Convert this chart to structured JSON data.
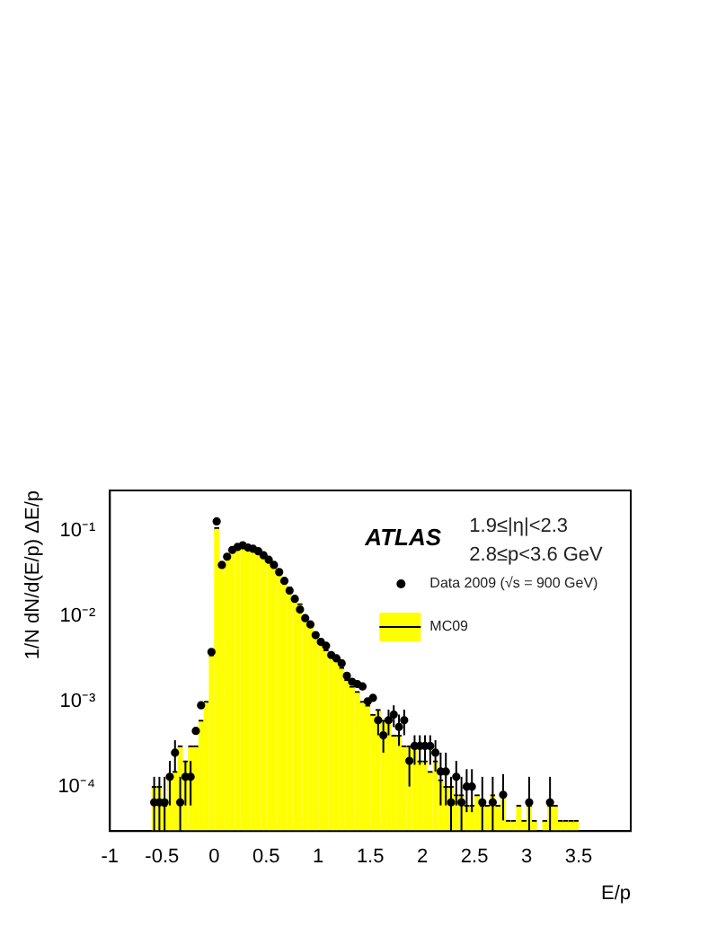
{
  "chart_data": {
    "type": "histogram",
    "xlabel": "E/p",
    "ylabel": "1/N dN/d(E/p) ΔE/p",
    "annotations": [
      "ATLAS",
      "1.9≤|η|<2.3",
      "2.8≤p<3.6 GeV"
    ],
    "bins": [
      -0.6,
      -0.55,
      -0.5,
      -0.45,
      -0.4,
      -0.35,
      -0.3,
      -0.25,
      -0.2,
      -0.15,
      -0.1,
      -0.05,
      0,
      0.05,
      0.1,
      0.15,
      0.2,
      0.25,
      0.3,
      0.35,
      0.4,
      0.45,
      0.5,
      0.55,
      0.6,
      0.65,
      0.7,
      0.75,
      0.8,
      0.85,
      0.9,
      0.95,
      1,
      1.05,
      1.1,
      1.15,
      1.2,
      1.25,
      1.3,
      1.35,
      1.4,
      1.45,
      1.5,
      1.55,
      1.6,
      1.65,
      1.7,
      1.75,
      1.8,
      1.85,
      1.9,
      1.95,
      2,
      2.05,
      2.1,
      2.15,
      2.2,
      2.25,
      2.3,
      2.35,
      2.4,
      2.45,
      2.5,
      2.55,
      2.6,
      2.65,
      2.7,
      2.75,
      2.8,
      2.85,
      2.9,
      2.95,
      3,
      3.05,
      3.1,
      3.15,
      3.2,
      3.25,
      3.3,
      3.35,
      3.4,
      3.45,
      3.5
    ],
    "series": [
      {
        "name": "MC09",
        "color": "#ffff00",
        "values": [
          0.0001,
          0.0001,
          6e-05,
          0.00013,
          0.00015,
          0.0003,
          0.0002,
          0.0003,
          0.0003,
          0.0006,
          0.001,
          0.0035,
          0.11,
          0.04,
          0.05,
          0.058,
          0.062,
          0.064,
          0.062,
          0.058,
          0.055,
          0.05,
          0.045,
          0.04,
          0.034,
          0.028,
          0.022,
          0.017,
          0.014,
          0.01,
          0.008,
          0.0065,
          0.005,
          0.004,
          0.0035,
          0.003,
          0.0025,
          0.0018,
          0.0015,
          0.0013,
          0.001,
          0.0009,
          0.0007,
          0.0008,
          0.0006,
          0.0006,
          0.0004,
          0.0004,
          0.0003,
          0.0003,
          0.0003,
          0.0002,
          0.0002,
          0.00015,
          0.0002,
          0.00012,
          0.0001,
          0.0001,
          8e-05,
          8e-05,
          6e-05,
          6e-05,
          8e-05,
          6e-05,
          6e-05,
          8e-05,
          6e-05,
          8e-05,
          4e-05,
          4e-05,
          6e-05,
          4e-05,
          6e-05,
          4e-05,
          null,
          4e-05,
          6e-05,
          6e-05,
          4e-05,
          4e-05,
          4e-05,
          4e-05
        ]
      },
      {
        "name": "Data 2009 (√s = 900 GeV)",
        "type": "scatter",
        "color": "#000000",
        "x": [
          -0.575,
          -0.525,
          -0.475,
          -0.425,
          -0.375,
          -0.325,
          -0.275,
          -0.225,
          -0.175,
          -0.125,
          -0.025,
          0.025,
          0.075,
          0.125,
          0.175,
          0.225,
          0.275,
          0.325,
          0.375,
          0.425,
          0.475,
          0.525,
          0.575,
          0.625,
          0.675,
          0.725,
          0.775,
          0.825,
          0.875,
          0.925,
          0.975,
          1.025,
          1.075,
          1.125,
          1.175,
          1.225,
          1.275,
          1.325,
          1.375,
          1.425,
          1.475,
          1.525,
          1.575,
          1.625,
          1.675,
          1.725,
          1.775,
          1.825,
          1.875,
          1.925,
          1.975,
          2.025,
          2.075,
          2.125,
          2.175,
          2.225,
          2.275,
          2.325,
          2.375,
          2.425,
          2.475,
          2.575,
          2.675,
          2.775,
          3.025,
          3.225
        ],
        "values": [
          6.5e-05,
          6.5e-05,
          6.5e-05,
          0.00013,
          0.00025,
          6.5e-05,
          0.00013,
          0.00013,
          0.00045,
          0.0009,
          0.0038,
          0.13,
          0.04,
          0.05,
          0.06,
          0.065,
          0.068,
          0.064,
          0.062,
          0.058,
          0.052,
          0.046,
          0.04,
          0.033,
          0.026,
          0.02,
          0.016,
          0.012,
          0.0095,
          0.008,
          0.006,
          0.005,
          0.0045,
          0.0035,
          0.0032,
          0.0028,
          0.002,
          0.0017,
          0.0016,
          0.0015,
          0.001,
          0.0011,
          0.0006,
          0.0004,
          0.0006,
          0.0007,
          0.0005,
          0.0006,
          0.0002,
          0.0003,
          0.0003,
          0.0003,
          0.0003,
          0.00025,
          0.00015,
          0.00015,
          6.5e-05,
          0.00013,
          6.5e-05,
          0.0001,
          0.0001,
          6.5e-05,
          6.5e-05,
          8e-05,
          6.5e-05,
          6.5e-05
        ],
        "errors": [
          [
            3e-05,
            0.00013
          ],
          [
            3e-05,
            0.00013
          ],
          [
            3e-05,
            0.00013
          ],
          [
            6e-05,
            0.0002
          ],
          [
            0.00015,
            0.00035
          ],
          [
            3e-05,
            0.00013
          ],
          [
            6e-05,
            0.0002
          ],
          [
            6e-05,
            0.0002
          ],
          null,
          null,
          null,
          null,
          null,
          null,
          null,
          null,
          null,
          null,
          null,
          null,
          null,
          null,
          null,
          null,
          null,
          null,
          null,
          null,
          null,
          null,
          null,
          null,
          null,
          null,
          null,
          null,
          null,
          null,
          null,
          null,
          null,
          null,
          [
            0.0004,
            0.0008
          ],
          [
            0.00025,
            0.0006
          ],
          [
            0.0004,
            0.0008
          ],
          [
            0.0005,
            0.0009
          ],
          [
            0.0003,
            0.0007
          ],
          [
            0.0004,
            0.0008
          ],
          [
            0.0001,
            0.0003
          ],
          [
            0.00018,
            0.0004
          ],
          [
            0.00018,
            0.0004
          ],
          [
            0.00018,
            0.0004
          ],
          [
            0.00018,
            0.0004
          ],
          [
            0.00015,
            0.00035
          ],
          [
            6e-05,
            0.00025
          ],
          [
            6e-05,
            0.00025
          ],
          [
            3e-05,
            0.00013
          ],
          [
            6e-05,
            0.0002
          ],
          [
            3e-05,
            0.00013
          ],
          [
            5e-05,
            0.00016
          ],
          [
            5e-05,
            0.00016
          ],
          [
            3e-05,
            0.00013
          ],
          [
            3e-05,
            0.00013
          ],
          [
            4e-05,
            0.00014
          ],
          [
            3e-05,
            0.00013
          ],
          [
            3e-05,
            0.00013
          ]
        ]
      }
    ],
    "xlim": [
      -1,
      4
    ],
    "xticks": [
      -1,
      -0.5,
      0,
      0.5,
      1,
      1.5,
      2,
      2.5,
      3,
      3.5
    ],
    "ylim": [
      3e-05,
      0.3
    ],
    "log": "y",
    "yticks": [
      {
        "value": 0.1,
        "label": "10⁻¹"
      },
      {
        "value": 0.01,
        "label": "10⁻²"
      },
      {
        "value": 0.001,
        "label": "10⁻³"
      },
      {
        "value": 0.0001,
        "label": "10⁻⁴"
      }
    ],
    "legend": "top right",
    "marker": "circle",
    "grid": false
  }
}
